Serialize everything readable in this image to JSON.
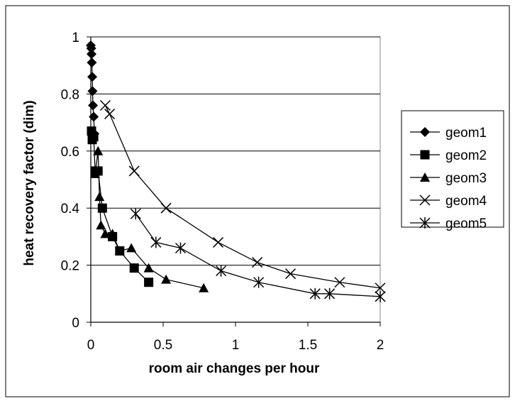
{
  "chart_data": {
    "type": "scatter",
    "title": "",
    "xlabel": "room air changes per hour",
    "ylabel": "heat recovery factor (dim)",
    "xlim": [
      0,
      2
    ],
    "ylim": [
      0,
      1
    ],
    "x_ticks": [
      0,
      0.5,
      1,
      1.5,
      2
    ],
    "x_tick_labels": [
      "0",
      "0.5",
      "1",
      "1.5",
      "2"
    ],
    "y_ticks": [
      0,
      0.2,
      0.4,
      0.6,
      0.8,
      1
    ],
    "y_tick_labels": [
      "0",
      "0.2",
      "0.4",
      "0.6",
      "0.8",
      "1"
    ],
    "grid": "horizontal",
    "legend_position": "right",
    "series": [
      {
        "name": "geom1",
        "marker": "diamond",
        "line": true,
        "x": [
          0.0,
          0.003,
          0.005,
          0.007,
          0.01,
          0.012,
          0.015,
          0.02,
          0.025
        ],
        "y": [
          0.97,
          0.96,
          0.94,
          0.91,
          0.86,
          0.81,
          0.76,
          0.72,
          0.66
        ]
      },
      {
        "name": "geom2",
        "marker": "square",
        "line": true,
        "x": [
          0.005,
          0.01,
          0.02,
          0.03,
          0.05,
          0.08,
          0.15,
          0.2,
          0.3,
          0.4
        ],
        "y": [
          0.67,
          0.64,
          0.65,
          0.53,
          0.53,
          0.4,
          0.3,
          0.25,
          0.19,
          0.14
        ]
      },
      {
        "name": "geom3",
        "marker": "triangle",
        "line": true,
        "x": [
          0.03,
          0.05,
          0.06,
          0.07,
          0.1,
          0.15,
          0.2,
          0.28,
          0.4,
          0.52,
          0.78
        ],
        "y": [
          0.52,
          0.6,
          0.44,
          0.34,
          0.31,
          0.31,
          0.25,
          0.26,
          0.19,
          0.15,
          0.12
        ]
      },
      {
        "name": "geom4",
        "marker": "x",
        "line": true,
        "x": [
          0.1,
          0.13,
          0.3,
          0.52,
          0.88,
          1.15,
          1.38,
          1.72,
          2.0
        ],
        "y": [
          0.76,
          0.73,
          0.53,
          0.4,
          0.28,
          0.21,
          0.17,
          0.14,
          0.12
        ]
      },
      {
        "name": "geom5",
        "marker": "star",
        "line": true,
        "x": [
          0.31,
          0.45,
          0.62,
          0.9,
          1.16,
          1.55,
          1.65,
          2.0
        ],
        "y": [
          0.38,
          0.28,
          0.26,
          0.18,
          0.14,
          0.1,
          0.1,
          0.09
        ]
      }
    ]
  }
}
